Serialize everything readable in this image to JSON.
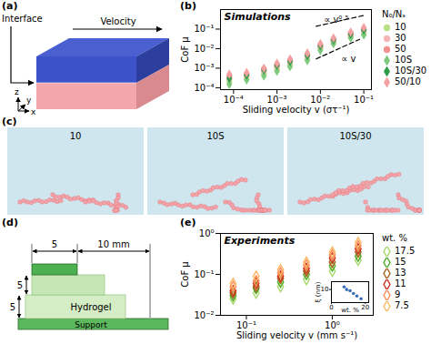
{
  "chart_data": [
    {
      "panel": "(b)",
      "type": "scatter",
      "title": "Simulations",
      "xlabel": "Sliding velocity v (στ⁻¹)",
      "ylabel": "CoF μ",
      "log": true,
      "grid": false,
      "legend": "right",
      "legend_title": "N₀/Nₛ",
      "x": [
        8e-05,
        0.0002,
        0.0005,
        0.001,
        0.002,
        0.005,
        0.01,
        0.02,
        0.05,
        0.1
      ],
      "xlim": [
        5e-05,
        0.15
      ],
      "xticks": [
        {
          "value": 0.0001,
          "label": "10⁻⁴"
        },
        {
          "value": 0.001,
          "label": "10⁻³"
        },
        {
          "value": 0.01,
          "label": "10⁻²"
        },
        {
          "value": 0.1,
          "label": "10⁻¹"
        }
      ],
      "ylim": [
        8e-05,
        1
      ],
      "yticks": [
        {
          "value": 0.0001,
          "label": "10⁻⁴"
        },
        {
          "value": 0.001,
          "label": "10⁻³"
        },
        {
          "value": 0.01,
          "label": "10⁻²"
        },
        {
          "value": 0.1,
          "label": "10⁻¹"
        }
      ],
      "series": [
        {
          "name": "10",
          "color": "#b8e186",
          "marker": "circle",
          "values": [
            0.0002,
            0.0003,
            0.0005,
            0.0009,
            0.0015,
            0.003,
            0.01,
            0.02,
            0.04,
            0.06
          ]
        },
        {
          "name": "30",
          "color": "#f7b6b6",
          "marker": "circle",
          "values": [
            0.0003,
            0.0004,
            0.0007,
            0.0012,
            0.002,
            0.004,
            0.012,
            0.025,
            0.05,
            0.08
          ]
        },
        {
          "name": "50",
          "color": "#f28e8e",
          "marker": "circle",
          "values": [
            0.0004,
            0.0005,
            0.0009,
            0.0015,
            0.0025,
            0.005,
            0.015,
            0.03,
            0.06,
            0.1
          ]
        },
        {
          "name": "10S",
          "color": "#7fc97f",
          "marker": "diamond",
          "values": [
            0.00015,
            0.00025,
            0.0004,
            0.0007,
            0.0012,
            0.0025,
            0.008,
            0.018,
            0.035,
            0.05
          ]
        },
        {
          "name": "10S/30",
          "color": "#2e9e4a",
          "marker": "diamond",
          "values": [
            0.0003,
            0.00045,
            0.0008,
            0.0014,
            0.0022,
            0.0045,
            0.014,
            0.028,
            0.055,
            0.09
          ]
        },
        {
          "name": "50/10",
          "color": "#f4a0a0",
          "marker": "diamond",
          "values": [
            0.0005,
            0.0006,
            0.001,
            0.0018,
            0.003,
            0.006,
            0.018,
            0.035,
            0.07,
            0.12
          ]
        }
      ],
      "annotations": [
        {
          "text": "∝ v⁰·⁵",
          "x": 0.012,
          "y": 0.3,
          "line": {
            "x": [
              0.008,
              0.1
            ],
            "y": [
              0.14,
              0.5
            ]
          }
        },
        {
          "text": "∝ v",
          "x": 0.03,
          "y": 0.003,
          "line": {
            "x": [
              0.008,
              0.08
            ],
            "y": [
              0.003,
              0.03
            ]
          }
        }
      ]
    },
    {
      "panel": "(e)",
      "type": "scatter",
      "title": "Experiments",
      "xlabel": "Sliding velocity v (mm s⁻¹)",
      "ylabel": "CoF μ",
      "log": true,
      "grid": false,
      "legend": "right",
      "legend_title": "wt. %",
      "x": [
        0.07,
        0.13,
        0.25,
        0.5,
        1,
        2
      ],
      "xlim": [
        0.05,
        3
      ],
      "xticks": [
        {
          "value": 0.1,
          "label": "10⁻¹"
        },
        {
          "value": 1,
          "label": "10⁰"
        }
      ],
      "ylim": [
        0.01,
        1
      ],
      "yticks": [
        {
          "value": 0.01,
          "label": "10⁻²"
        },
        {
          "value": 0.1,
          "label": "10⁻¹"
        },
        {
          "value": 1,
          "label": "10⁰"
        }
      ],
      "series": [
        {
          "name": "17.5",
          "color": "#a6d96a",
          "marker": "diamond-open",
          "values": [
            0.025,
            0.035,
            0.05,
            0.075,
            0.12,
            0.22
          ]
        },
        {
          "name": "15",
          "color": "#4dac26",
          "marker": "diamond-open",
          "values": [
            0.03,
            0.045,
            0.065,
            0.1,
            0.16,
            0.28
          ]
        },
        {
          "name": "13",
          "color": "#a6611a",
          "marker": "diamond-open",
          "values": [
            0.035,
            0.05,
            0.08,
            0.12,
            0.2,
            0.35
          ]
        },
        {
          "name": "11",
          "color": "#d7301f",
          "marker": "diamond-open",
          "values": [
            0.04,
            0.06,
            0.09,
            0.14,
            0.25,
            0.42
          ]
        },
        {
          "name": "9",
          "color": "#fc8d59",
          "marker": "diamond-open",
          "values": [
            0.05,
            0.07,
            0.11,
            0.17,
            0.3,
            0.5
          ]
        },
        {
          "name": "7.5",
          "color": "#fdb863",
          "marker": "diamond-open",
          "values": [
            0.06,
            0.09,
            0.13,
            0.2,
            0.35,
            0.6
          ]
        }
      ],
      "inset": {
        "type": "scatter",
        "xlabel": "wt. %",
        "ylabel": "ξ (nm)",
        "x": [
          7.5,
          9,
          11,
          13,
          15,
          17.5
        ],
        "values": [
          11,
          10,
          9.5,
          8.5,
          7.5,
          6.5
        ],
        "color": "#3b6fb6",
        "marker": "circle",
        "xlim": [
          0,
          22
        ],
        "xticks": [
          0,
          20
        ],
        "ylim": [
          5,
          13
        ],
        "yticks": [
          10
        ]
      }
    }
  ],
  "panels": {
    "a": {
      "panel": "(a)",
      "labels": [
        "Interface",
        "Velocity"
      ],
      "axes": [
        "z",
        "y",
        "x"
      ]
    },
    "c": {
      "panel": "(c)",
      "snapshots": [
        "10",
        "10S",
        "10S/30"
      ]
    },
    "d": {
      "panel": "(d)",
      "dimensions": [
        "5",
        "10 mm",
        "5",
        "5"
      ],
      "layers": [
        "Hydrogel",
        "Support"
      ]
    }
  }
}
